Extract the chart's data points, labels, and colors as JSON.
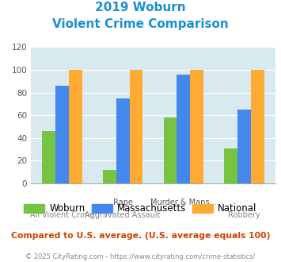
{
  "title_line1": "2019 Woburn",
  "title_line2": "Violent Crime Comparison",
  "cat_top_labels": [
    "",
    "Rape",
    "Murder & Mans...",
    ""
  ],
  "cat_bot_labels": [
    "All Violent Crime",
    "Aggravated Assault",
    "",
    "Robbery"
  ],
  "woburn": [
    46,
    12,
    58,
    31
  ],
  "massachusetts": [
    86,
    75,
    96,
    65
  ],
  "national": [
    100,
    100,
    100,
    100
  ],
  "woburn_color": "#76c442",
  "mass_color": "#4488ee",
  "national_color": "#ffaa33",
  "ylim": [
    0,
    120
  ],
  "yticks": [
    0,
    20,
    40,
    60,
    80,
    100,
    120
  ],
  "bg_color": "#d8eaf0",
  "title_color": "#1a8fd1",
  "footer_text": "Compared to U.S. average. (U.S. average equals 100)",
  "credit_text": "© 2025 CityRating.com - https://www.cityrating.com/crime-statistics/",
  "footer_color": "#cc4400",
  "credit_color": "#888888",
  "legend_labels": [
    "Woburn",
    "Massachusetts",
    "National"
  ]
}
